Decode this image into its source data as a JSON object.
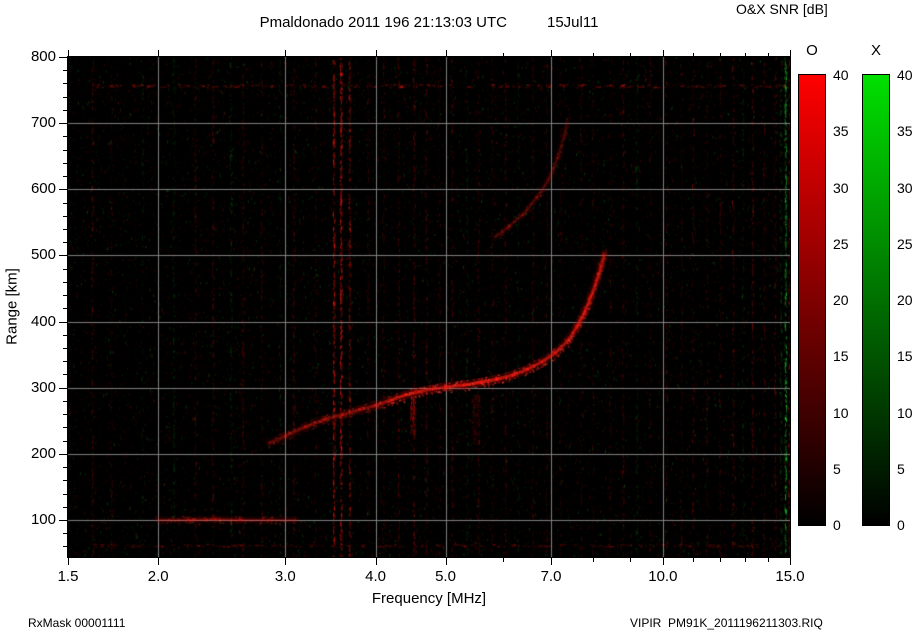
{
  "header": {
    "title": "Pmaldonado 2011 196 21:13:03 UTC",
    "date": "15Jul11"
  },
  "colorbar_title": "O&X SNR [dB]",
  "footer": {
    "rx_mask": "RxMask 00001111",
    "file": "VIPIR  PM91K_2011196211303.RIQ"
  },
  "axes": {
    "x": {
      "label": "Frequency [MHz]",
      "scale": "log",
      "min": 1.5,
      "max": 15,
      "major_ticks": [
        1.5,
        2,
        3,
        4,
        5,
        7,
        10,
        15
      ],
      "major_labels": [
        "1.5",
        "2.0",
        "3.0",
        "4.0",
        "5.0",
        "7.0",
        "10.0",
        "15.0"
      ],
      "minor_ticks": [
        6,
        8,
        9,
        11,
        12,
        13,
        14
      ],
      "grid": [
        2,
        3,
        4,
        5,
        7,
        10
      ]
    },
    "y": {
      "label": "Range [km]",
      "min": 44,
      "max": 800,
      "major_ticks": [
        100,
        200,
        300,
        400,
        500,
        600,
        700,
        800
      ],
      "major_labels": [
        "100",
        "200",
        "300",
        "400",
        "500",
        "600",
        "700",
        "800"
      ],
      "minor_step": 20,
      "grid": [
        100,
        200,
        300,
        400,
        500,
        600,
        700
      ]
    }
  },
  "colorbars": [
    {
      "name": "O",
      "top_color": "#ff0000",
      "min": 0,
      "max": 40,
      "tick_step": 5
    },
    {
      "name": "X",
      "top_color": "#00e000",
      "min": 0,
      "max": 40,
      "tick_step": 5
    }
  ],
  "chart_data": {
    "type": "heatmap",
    "title": "Pmaldonado 2011 196 21:13:03 UTC 15Jul11",
    "xlabel": "Frequency [MHz]",
    "ylabel": "Range [km]",
    "xscale": "log",
    "xlim": [
      1.5,
      15.0
    ],
    "ylim": [
      44,
      800
    ],
    "grid": true,
    "background": "#000000",
    "color_scale": {
      "label": "O&X SNR [dB]",
      "min": 0,
      "max": 40,
      "o_mode_color": "red",
      "x_mode_color": "green"
    },
    "series": [
      {
        "name": "F-layer O-mode trace",
        "color": "red",
        "width": 3.2,
        "points": [
          [
            2.85,
            216,
            0.3
          ],
          [
            3.0,
            227,
            0.35
          ],
          [
            3.2,
            241,
            0.4
          ],
          [
            3.4,
            252,
            0.42
          ],
          [
            3.6,
            259,
            0.4
          ],
          [
            3.8,
            267,
            0.45
          ],
          [
            4.0,
            273,
            0.5
          ],
          [
            4.2,
            281,
            0.6
          ],
          [
            4.4,
            289,
            0.72
          ],
          [
            4.6,
            294,
            0.6
          ],
          [
            4.8,
            298,
            0.62
          ],
          [
            5.0,
            301,
            0.75
          ],
          [
            5.3,
            304,
            0.82
          ],
          [
            5.6,
            308,
            0.82
          ],
          [
            5.9,
            313,
            0.75
          ],
          [
            6.2,
            319,
            0.72
          ],
          [
            6.5,
            328,
            0.7
          ],
          [
            6.8,
            339,
            0.66
          ],
          [
            7.1,
            353,
            0.64
          ],
          [
            7.4,
            372,
            0.6
          ],
          [
            7.6,
            392,
            0.58
          ],
          [
            7.8,
            415,
            0.55
          ],
          [
            7.95,
            438,
            0.5
          ],
          [
            8.1,
            463,
            0.45
          ],
          [
            8.2,
            483,
            0.4
          ],
          [
            8.28,
            502,
            0.34
          ]
        ]
      },
      {
        "name": "F-layer secondary strand",
        "color": "red",
        "width": 2.2,
        "points": [
          [
            7.5,
            382,
            0.28
          ],
          [
            7.72,
            405,
            0.3
          ],
          [
            7.92,
            432,
            0.3
          ],
          [
            8.08,
            458,
            0.28
          ],
          [
            8.22,
            482,
            0.25
          ],
          [
            8.34,
            505,
            0.2
          ]
        ]
      },
      {
        "name": "Second-hop trace",
        "color": "red",
        "width": 2.4,
        "points": [
          [
            5.85,
            528,
            0.22
          ],
          [
            6.1,
            542,
            0.24
          ],
          [
            6.4,
            562,
            0.26
          ],
          [
            6.7,
            588,
            0.26
          ],
          [
            6.95,
            615,
            0.24
          ],
          [
            7.15,
            648,
            0.2
          ],
          [
            7.3,
            682,
            0.18
          ],
          [
            7.38,
            706,
            0.14
          ]
        ]
      },
      {
        "name": "E-region echo",
        "color": "red",
        "width": 2.6,
        "points": [
          [
            2.0,
            100,
            0.3
          ],
          [
            2.2,
            100,
            0.4
          ],
          [
            2.4,
            101,
            0.45
          ],
          [
            2.6,
            100,
            0.38
          ],
          [
            2.85,
            100,
            0.32
          ],
          [
            3.1,
            100,
            0.26
          ]
        ]
      }
    ],
    "smears": [
      {
        "f": 4.5,
        "km_range": [
          228,
          302
        ],
        "alpha": 0.28,
        "width": 5
      },
      {
        "f": 5.5,
        "km_range": [
          215,
          290
        ],
        "alpha": 0.14,
        "width": 8
      }
    ],
    "h_bands": [
      {
        "km": 757,
        "f_range": [
          1.62,
          14.9
        ],
        "alpha": 0.32
      },
      {
        "km": 62,
        "f_range": [
          1.62,
          14.9
        ],
        "alpha": 0.22
      }
    ],
    "rfi_stripes": [
      {
        "f": 1.62,
        "color": "red",
        "strength": 0.22
      },
      {
        "f": 1.72,
        "color": "red",
        "strength": 0.15
      },
      {
        "f": 1.9,
        "color": "green",
        "strength": 0.1
      },
      {
        "f": 2.1,
        "color": "green",
        "strength": 0.14
      },
      {
        "f": 2.25,
        "color": "red",
        "strength": 0.18
      },
      {
        "f": 2.38,
        "color": "red",
        "strength": 0.22
      },
      {
        "f": 2.52,
        "color": "green",
        "strength": 0.16
      },
      {
        "f": 2.62,
        "color": "red",
        "strength": 0.2
      },
      {
        "f": 2.78,
        "color": "red",
        "strength": 0.18
      },
      {
        "f": 2.95,
        "color": "green",
        "strength": 0.12
      },
      {
        "f": 3.08,
        "color": "red",
        "strength": 0.2
      },
      {
        "f": 3.3,
        "color": "red",
        "strength": 0.16
      },
      {
        "f": 3.5,
        "color": "red",
        "strength": 0.5
      },
      {
        "f": 3.58,
        "color": "red",
        "strength": 0.55
      },
      {
        "f": 3.68,
        "color": "red",
        "strength": 0.4
      },
      {
        "f": 3.9,
        "color": "red",
        "strength": 0.16
      },
      {
        "f": 4.1,
        "color": "red",
        "strength": 0.18
      },
      {
        "f": 4.3,
        "color": "red",
        "strength": 0.22
      },
      {
        "f": 4.52,
        "color": "red",
        "strength": 0.26
      },
      {
        "f": 4.7,
        "color": "red",
        "strength": 0.22
      },
      {
        "f": 4.9,
        "color": "red",
        "strength": 0.15
      },
      {
        "f": 5.1,
        "color": "red",
        "strength": 0.2
      },
      {
        "f": 5.35,
        "color": "green",
        "strength": 0.13
      },
      {
        "f": 5.55,
        "color": "red",
        "strength": 0.18
      },
      {
        "f": 5.8,
        "color": "red",
        "strength": 0.16
      },
      {
        "f": 6.05,
        "color": "red",
        "strength": 0.2
      },
      {
        "f": 6.3,
        "color": "green",
        "strength": 0.11
      },
      {
        "f": 6.6,
        "color": "red",
        "strength": 0.18
      },
      {
        "f": 6.9,
        "color": "red",
        "strength": 0.16
      },
      {
        "f": 7.2,
        "color": "red",
        "strength": 0.14
      },
      {
        "f": 7.7,
        "color": "red",
        "strength": 0.16
      },
      {
        "f": 8.0,
        "color": "red",
        "strength": 0.14
      },
      {
        "f": 8.45,
        "color": "red",
        "strength": 0.16
      },
      {
        "f": 8.8,
        "color": "red",
        "strength": 0.2
      },
      {
        "f": 9.2,
        "color": "green",
        "strength": 0.13
      },
      {
        "f": 9.6,
        "color": "red",
        "strength": 0.16
      },
      {
        "f": 10.1,
        "color": "red",
        "strength": 0.18
      },
      {
        "f": 10.6,
        "color": "red",
        "strength": 0.16
      },
      {
        "f": 11.0,
        "color": "red",
        "strength": 0.2
      },
      {
        "f": 11.5,
        "color": "red",
        "strength": 0.16
      },
      {
        "f": 12.0,
        "color": "red",
        "strength": 0.18
      },
      {
        "f": 12.5,
        "color": "red",
        "strength": 0.22
      },
      {
        "f": 12.9,
        "color": "green",
        "strength": 0.13
      },
      {
        "f": 13.3,
        "color": "red",
        "strength": 0.26
      },
      {
        "f": 13.8,
        "color": "red",
        "strength": 0.18
      },
      {
        "f": 14.3,
        "color": "red",
        "strength": 0.22
      },
      {
        "f": 14.55,
        "color": "green",
        "strength": 0.18
      },
      {
        "f": 14.78,
        "color": "green",
        "strength": 0.45
      },
      {
        "f": 14.95,
        "color": "red",
        "strength": 0.28
      }
    ],
    "background_noise": {
      "seed": 987654321,
      "count": 22000,
      "red_fraction": 0.7,
      "max_alpha": 0.26
    }
  }
}
